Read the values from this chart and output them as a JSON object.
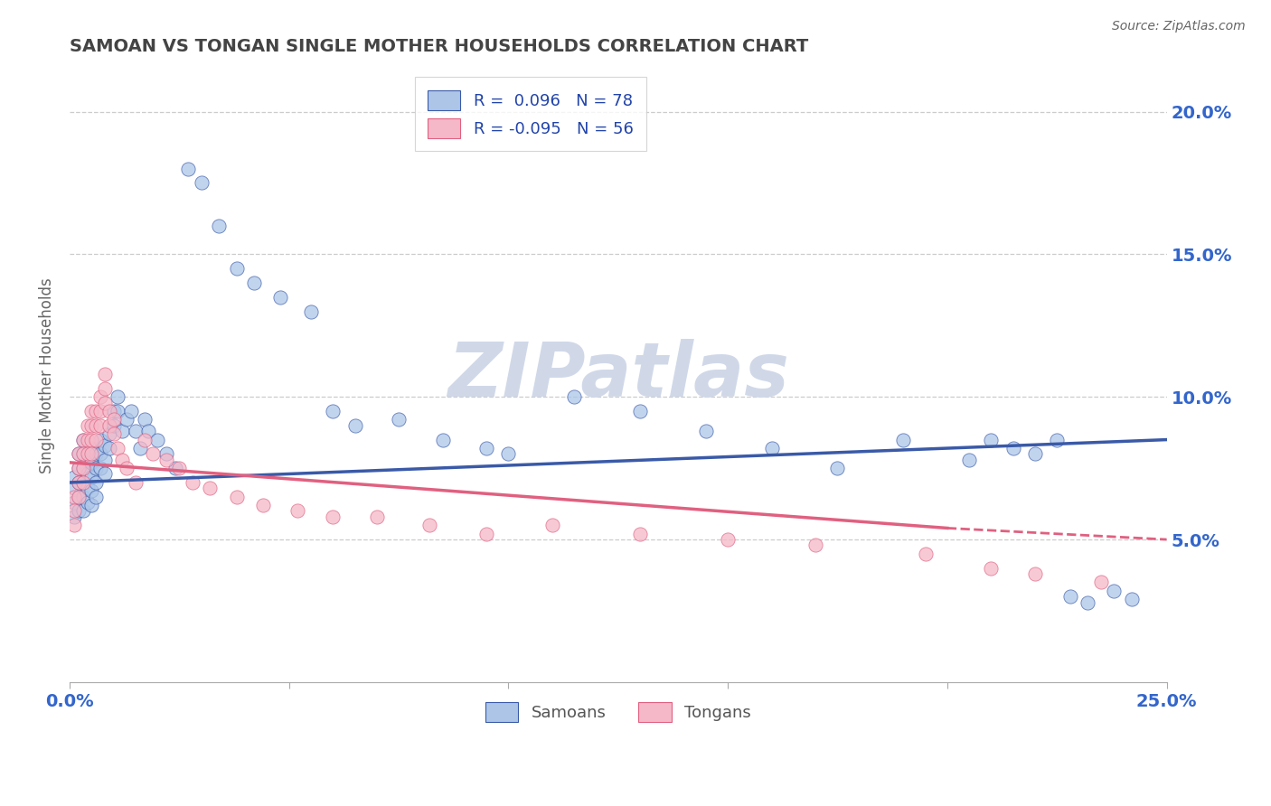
{
  "title": "SAMOAN VS TONGAN SINGLE MOTHER HOUSEHOLDS CORRELATION CHART",
  "source": "Source: ZipAtlas.com",
  "ylabel": "Single Mother Households",
  "xlim": [
    0.0,
    0.25
  ],
  "ylim": [
    0.0,
    0.215
  ],
  "xtick_positions": [
    0.0,
    0.05,
    0.1,
    0.15,
    0.2,
    0.25
  ],
  "xtick_labels": [
    "0.0%",
    "",
    "",
    "",
    "",
    "25.0%"
  ],
  "yticks_right": [
    0.05,
    0.1,
    0.15,
    0.2
  ],
  "ytick_right_labels": [
    "5.0%",
    "10.0%",
    "15.0%",
    "20.0%"
  ],
  "r_samoan": 0.096,
  "n_samoan": 78,
  "r_tongan": -0.095,
  "n_tongan": 56,
  "samoan_color": "#adc6e8",
  "tongan_color": "#f5b8c8",
  "trend_samoan_color": "#3a5aa8",
  "trend_tongan_color": "#e06080",
  "background_color": "#ffffff",
  "watermark": "ZIPatlas",
  "watermark_color": "#d0d8e8",
  "title_color": "#444444",
  "legend_label_color": "#2244aa",
  "tick_label_color": "#3366cc",
  "samoans_x": [
    0.001,
    0.001,
    0.001,
    0.001,
    0.002,
    0.002,
    0.002,
    0.002,
    0.002,
    0.003,
    0.003,
    0.003,
    0.003,
    0.003,
    0.003,
    0.004,
    0.004,
    0.004,
    0.004,
    0.005,
    0.005,
    0.005,
    0.005,
    0.005,
    0.006,
    0.006,
    0.006,
    0.006,
    0.007,
    0.007,
    0.007,
    0.008,
    0.008,
    0.008,
    0.009,
    0.009,
    0.01,
    0.01,
    0.011,
    0.011,
    0.012,
    0.013,
    0.014,
    0.015,
    0.016,
    0.017,
    0.018,
    0.02,
    0.022,
    0.024,
    0.027,
    0.03,
    0.034,
    0.038,
    0.042,
    0.048,
    0.055,
    0.06,
    0.065,
    0.075,
    0.085,
    0.095,
    0.1,
    0.115,
    0.13,
    0.145,
    0.16,
    0.175,
    0.19,
    0.205,
    0.21,
    0.215,
    0.22,
    0.225,
    0.228,
    0.232,
    0.238,
    0.242
  ],
  "samoans_y": [
    0.072,
    0.068,
    0.063,
    0.058,
    0.08,
    0.075,
    0.07,
    0.065,
    0.06,
    0.085,
    0.08,
    0.075,
    0.07,
    0.065,
    0.06,
    0.078,
    0.073,
    0.068,
    0.063,
    0.082,
    0.077,
    0.072,
    0.067,
    0.062,
    0.08,
    0.075,
    0.07,
    0.065,
    0.085,
    0.08,
    0.075,
    0.083,
    0.078,
    0.073,
    0.087,
    0.082,
    0.095,
    0.09,
    0.1,
    0.095,
    0.088,
    0.092,
    0.095,
    0.088,
    0.082,
    0.092,
    0.088,
    0.085,
    0.08,
    0.075,
    0.18,
    0.175,
    0.16,
    0.145,
    0.14,
    0.135,
    0.13,
    0.095,
    0.09,
    0.092,
    0.085,
    0.082,
    0.08,
    0.1,
    0.095,
    0.088,
    0.082,
    0.075,
    0.085,
    0.078,
    0.085,
    0.082,
    0.08,
    0.085,
    0.03,
    0.028,
    0.032,
    0.029
  ],
  "tongans_x": [
    0.001,
    0.001,
    0.001,
    0.002,
    0.002,
    0.002,
    0.002,
    0.003,
    0.003,
    0.003,
    0.003,
    0.004,
    0.004,
    0.004,
    0.005,
    0.005,
    0.005,
    0.005,
    0.006,
    0.006,
    0.006,
    0.007,
    0.007,
    0.007,
    0.008,
    0.008,
    0.008,
    0.009,
    0.009,
    0.01,
    0.01,
    0.011,
    0.012,
    0.013,
    0.015,
    0.017,
    0.019,
    0.022,
    0.025,
    0.028,
    0.032,
    0.038,
    0.044,
    0.052,
    0.06,
    0.07,
    0.082,
    0.095,
    0.11,
    0.13,
    0.15,
    0.17,
    0.195,
    0.21,
    0.22,
    0.235
  ],
  "tongans_y": [
    0.065,
    0.06,
    0.055,
    0.08,
    0.075,
    0.07,
    0.065,
    0.085,
    0.08,
    0.075,
    0.07,
    0.09,
    0.085,
    0.08,
    0.095,
    0.09,
    0.085,
    0.08,
    0.095,
    0.09,
    0.085,
    0.1,
    0.095,
    0.09,
    0.108,
    0.103,
    0.098,
    0.095,
    0.09,
    0.092,
    0.087,
    0.082,
    0.078,
    0.075,
    0.07,
    0.085,
    0.08,
    0.078,
    0.075,
    0.07,
    0.068,
    0.065,
    0.062,
    0.06,
    0.058,
    0.058,
    0.055,
    0.052,
    0.055,
    0.052,
    0.05,
    0.048,
    0.045,
    0.04,
    0.038,
    0.035
  ],
  "trend_samoan_x0": 0.0,
  "trend_samoan_y0": 0.07,
  "trend_samoan_x1": 0.25,
  "trend_samoan_y1": 0.085,
  "trend_tongan_x0": 0.0,
  "trend_tongan_y0": 0.077,
  "trend_tongan_x1": 0.2,
  "trend_tongan_y1": 0.054,
  "trend_tongan_dash_x0": 0.2,
  "trend_tongan_dash_y0": 0.054,
  "trend_tongan_dash_x1": 0.25,
  "trend_tongan_dash_y1": 0.05
}
